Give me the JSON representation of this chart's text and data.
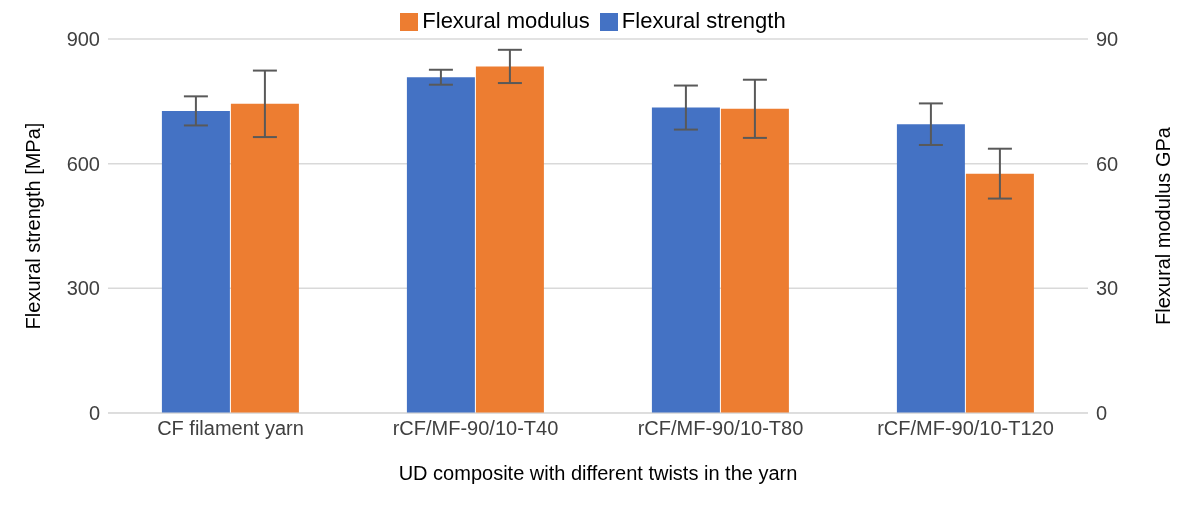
{
  "chart_data": {
    "type": "bar",
    "xlabel": "UD composite with different twists in the yarn",
    "ylabel": "Flexural strength [MPa]",
    "y2label": "Flexural modulus GPa",
    "categories": [
      "CF filament yarn",
      "rCF/MF-90/10-T40",
      "rCF/MF-90/10-T80",
      "rCF/MF-90/10-T120"
    ],
    "series": [
      {
        "name": "Flexural strength",
        "color": "#4472c4",
        "values": [
          727,
          808,
          735,
          695
        ],
        "errors": [
          35,
          18,
          53,
          50
        ]
      },
      {
        "name": "Flexural modulus",
        "color": "#ed7d31",
        "axis": "y2",
        "values": [
          74.4,
          83.4,
          73.2,
          57.6
        ],
        "errors": [
          8,
          4,
          7,
          6
        ]
      }
    ],
    "ylim": [
      0,
      900
    ],
    "yticks": [
      0,
      300,
      600,
      900
    ],
    "y2lim": [
      0,
      90
    ],
    "y2ticks": [
      0,
      30,
      60,
      90
    ],
    "grid": "y",
    "legend": "top"
  }
}
